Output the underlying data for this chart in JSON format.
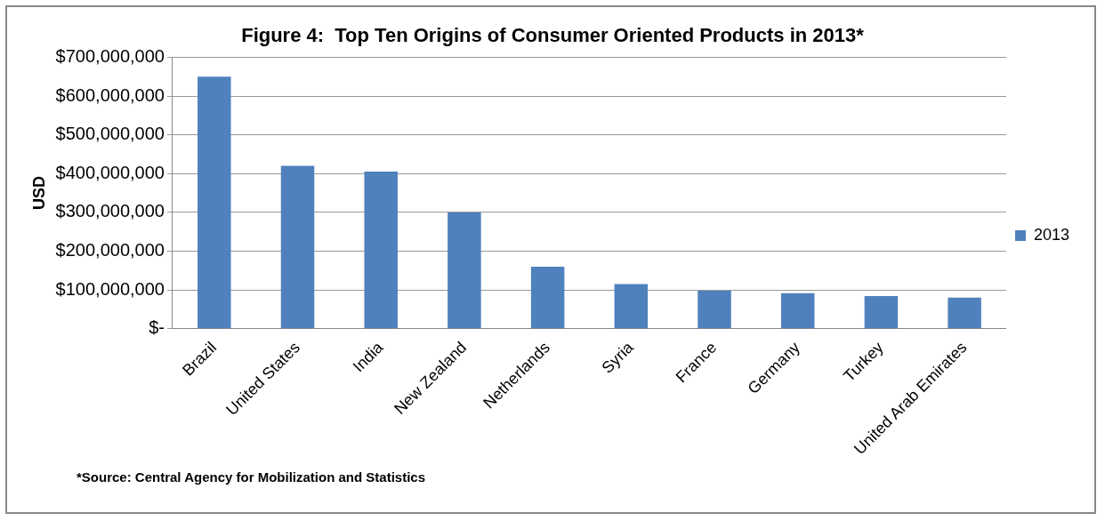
{
  "chart_data": {
    "type": "bar",
    "title": "Figure 4:  Top Ten Origins of Consumer Oriented Products in 2013*",
    "ylabel": "USD",
    "categories": [
      "Brazil",
      "United States",
      "India",
      "New Zealand",
      "Netherlands",
      "Syria",
      "France",
      "Germany",
      "Turkey",
      "United Arab Emirates"
    ],
    "series": [
      {
        "name": "2013",
        "color": "#4f81bd",
        "values": [
          650000000,
          420000000,
          405000000,
          300000000,
          160000000,
          115000000,
          98000000,
          92000000,
          84000000,
          80000000
        ]
      }
    ],
    "ylim": [
      0,
      700000000
    ],
    "yticks": [
      {
        "value": 0,
        "label": "$-"
      },
      {
        "value": 100000000,
        "label": "$100,000,000"
      },
      {
        "value": 200000000,
        "label": "$200,000,000"
      },
      {
        "value": 300000000,
        "label": "$300,000,000"
      },
      {
        "value": 400000000,
        "label": "$400,000,000"
      },
      {
        "value": 500000000,
        "label": "$500,000,000"
      },
      {
        "value": 600000000,
        "label": "$600,000,000"
      },
      {
        "value": 700000000,
        "label": "$700,000,000"
      }
    ],
    "grid": "y",
    "legend": "right",
    "annotations": [
      "*Source: Central Agency for Mobilization and Statistics"
    ]
  }
}
